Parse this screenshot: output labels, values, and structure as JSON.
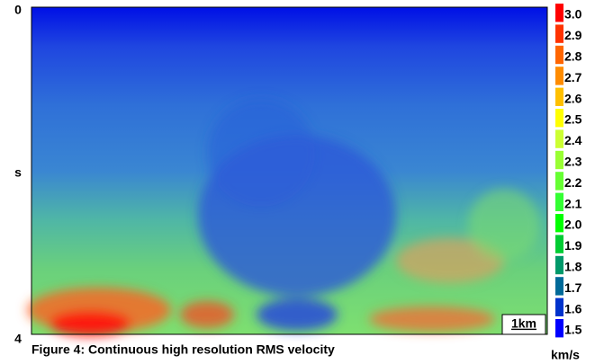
{
  "chart_data": {
    "type": "heatmap",
    "caption": "Figure 4: Continuous high resolution RMS velocity",
    "y_axis_label": "s",
    "ylim": [
      0,
      4
    ],
    "yticks": [
      0,
      4
    ],
    "scale_bar_label": "1km",
    "colorbar": {
      "unit": "km/s",
      "ticks": [
        {
          "value": 3,
          "label": "3.0"
        },
        2.9,
        2.8,
        2.7,
        2.6,
        2.5,
        2.4,
        2.3,
        2.2,
        2.1,
        {
          "value": 2,
          "label": "2.0"
        },
        1.9,
        1.8,
        1.7,
        1.6,
        1.5
      ],
      "colors": [
        "#ff0000",
        "#ff3300",
        "#ff6600",
        "#ff8c00",
        "#ffc000",
        "#ffff00",
        "#ccff33",
        "#99ff33",
        "#66ff33",
        "#33ff33",
        "#00ff00",
        "#00cc33",
        "#00996a",
        "#006a99",
        "#0033cc",
        "#0000ff"
      ]
    }
  }
}
